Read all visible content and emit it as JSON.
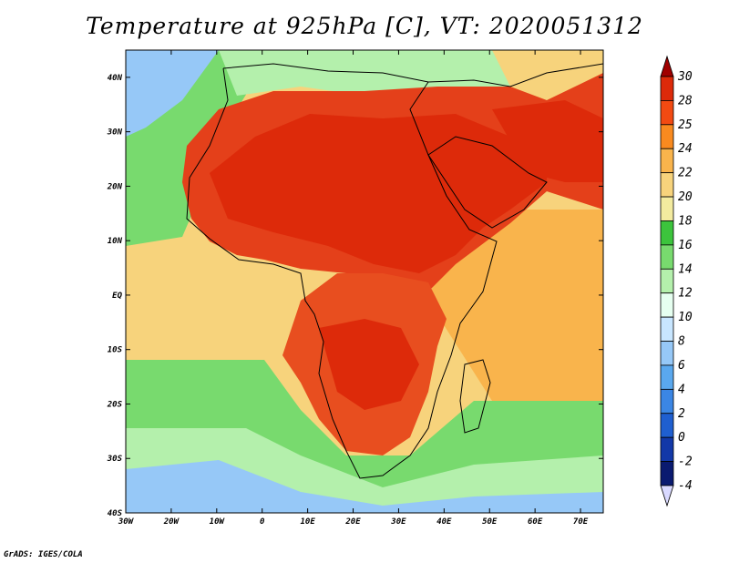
{
  "title": "Temperature at 925hPa [C], VT: 2020051312",
  "credit": "GrADS: IGES/COLA",
  "map": {
    "lon_ticks": [
      "30W",
      "20W",
      "10W",
      "0",
      "10E",
      "20E",
      "30E",
      "40E",
      "50E",
      "60E",
      "70E"
    ],
    "lat_ticks": [
      "40N",
      "30N",
      "20N",
      "10N",
      "EQ",
      "10S",
      "20S",
      "30S",
      "40S"
    ],
    "lon_range": [
      -30,
      75
    ],
    "lat_range": [
      -40,
      45
    ]
  },
  "colorbar": {
    "labels": [
      "30",
      "28",
      "25",
      "24",
      "22",
      "20",
      "18",
      "16",
      "14",
      "12",
      "10",
      "8",
      "6",
      "4",
      "2",
      "0",
      "-2",
      "-4"
    ],
    "colors": [
      "#a00000",
      "#dd2a0a",
      "#f24a12",
      "#f98a1f",
      "#f9b44c",
      "#f7d37c",
      "#f3eb9f",
      "#3cc43c",
      "#78da6e",
      "#b4f0ac",
      "#e6fff0",
      "#c8e6ff",
      "#96c8f7",
      "#5aa8ee",
      "#3b86e4",
      "#1f5fd0",
      "#1238a8",
      "#0a1a70",
      "#d9d9ff"
    ]
  },
  "regions": [
    {
      "name": "sahara-core",
      "color": "#dd2a0a"
    },
    {
      "name": "north-africa-hot",
      "color": "#e4401a"
    },
    {
      "name": "arabia-hot",
      "color": "#dd2a0a"
    },
    {
      "name": "southern-interior",
      "color": "#e84e1f"
    },
    {
      "name": "atlantic-tropical",
      "color": "#f7d37c"
    },
    {
      "name": "indian-tropical",
      "color": "#f9b44c"
    },
    {
      "name": "southern-ocean-green",
      "color": "#78da6e"
    },
    {
      "name": "southern-ocean-blue",
      "color": "#96c8f7"
    },
    {
      "name": "north-atlantic-cool",
      "color": "#78da6e"
    },
    {
      "name": "mediterranean",
      "color": "#b4f0ac"
    }
  ]
}
